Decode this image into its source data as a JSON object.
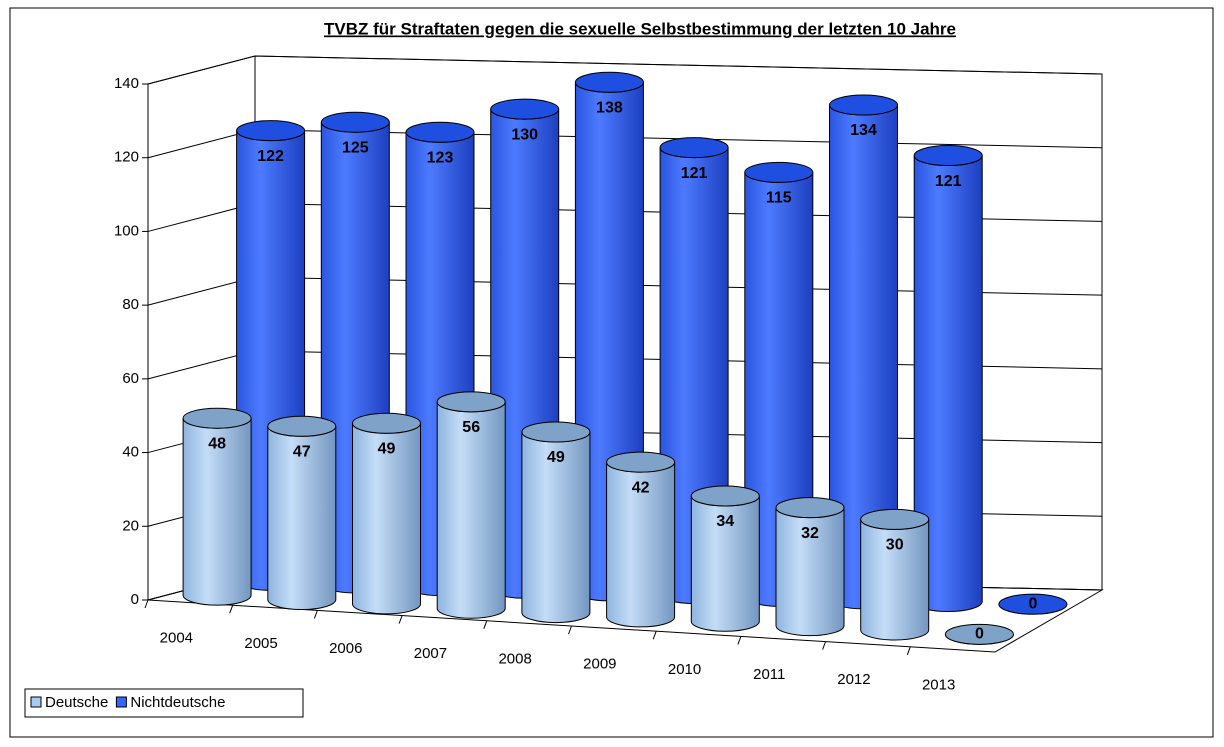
{
  "chart_data": {
    "type": "bar3d",
    "title": "TVBZ für Straftaten gegen die sexuelle Selbstbestimmung der letzten 10 Jahre",
    "categories": [
      "2004",
      "2005",
      "2006",
      "2007",
      "2008",
      "2009",
      "2010",
      "2011",
      "2012",
      "2013"
    ],
    "series": [
      {
        "name": "Deutsche",
        "color": "#a6caf0",
        "values": [
          48,
          47,
          49,
          56,
          49,
          42,
          34,
          32,
          30,
          0
        ]
      },
      {
        "name": "Nichtdeutsche",
        "color": "#3366ff",
        "values": [
          122,
          125,
          123,
          130,
          138,
          121,
          115,
          134,
          121,
          0
        ]
      }
    ],
    "ylim": [
      0,
      140
    ],
    "yticks": [
      0,
      20,
      40,
      60,
      80,
      100,
      120,
      140
    ],
    "grid": true,
    "legend": "bottom-left"
  }
}
